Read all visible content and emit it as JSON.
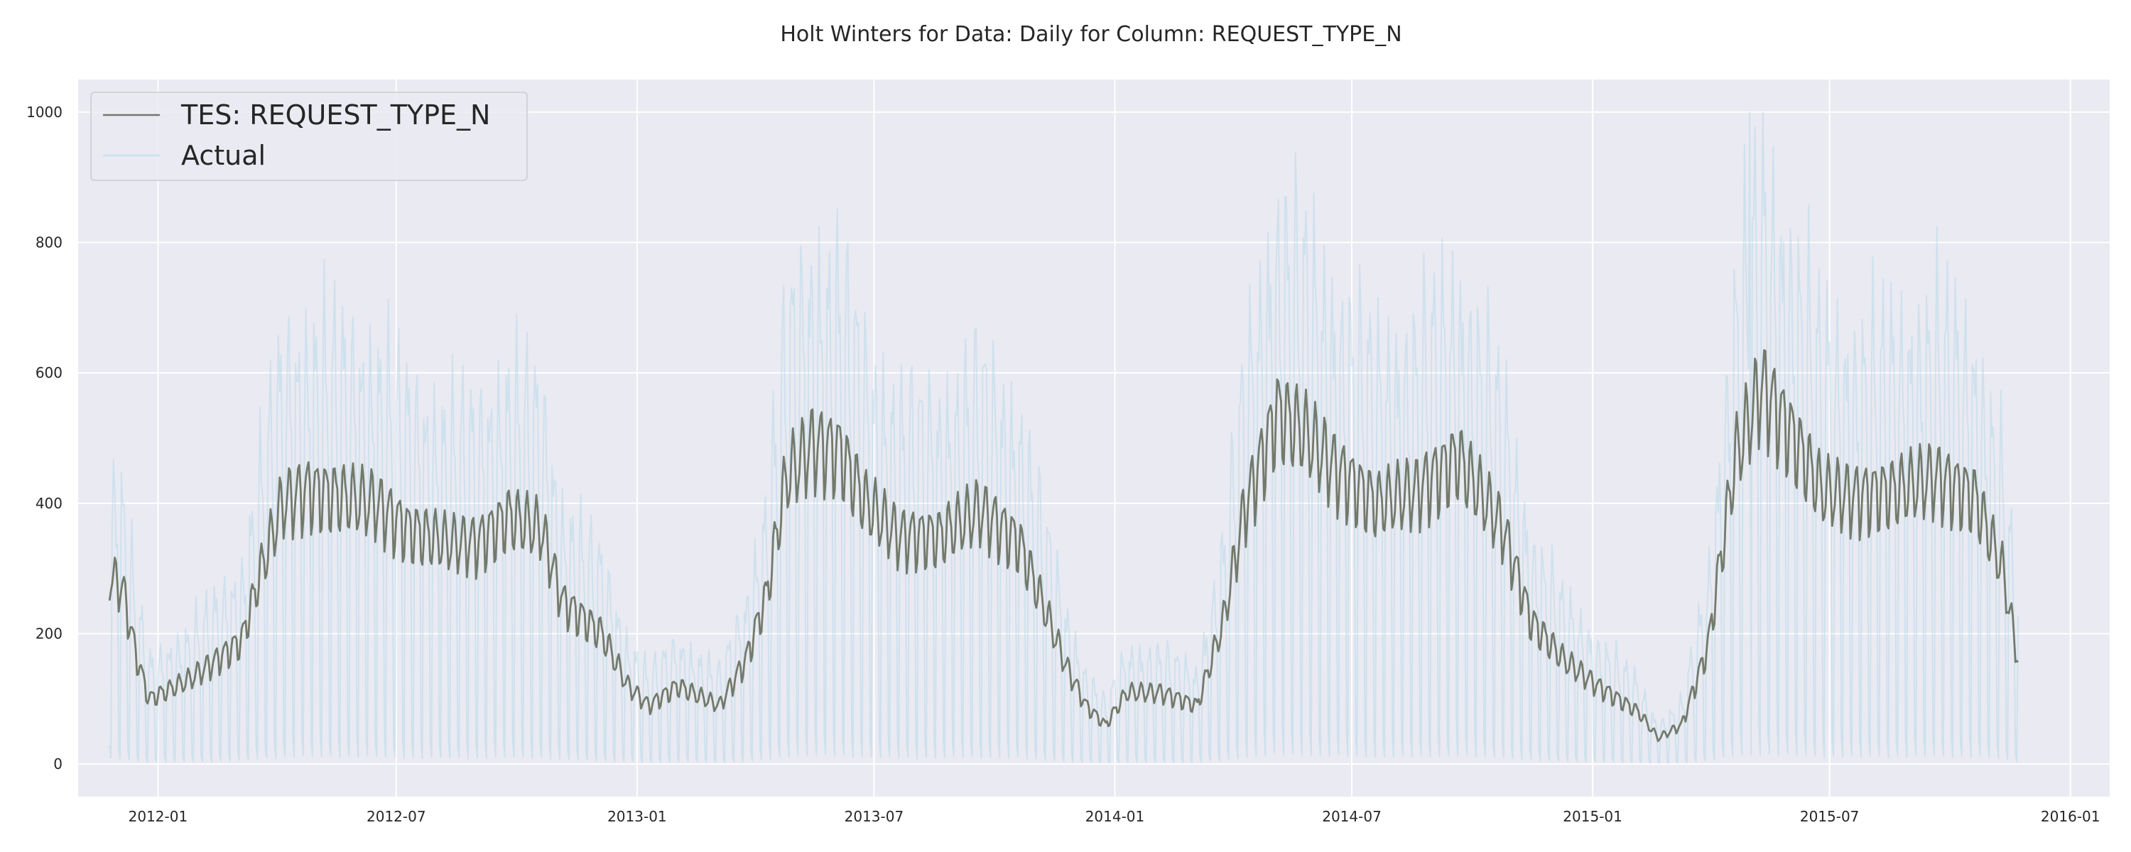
{
  "chart_data": {
    "type": "line",
    "title": "Holt Winters for Data: Daily for Column: REQUEST_TYPE_N",
    "xlabel": "",
    "ylabel": "",
    "x_range": [
      "2011-11-01",
      "2016-01-31"
    ],
    "ylim": [
      -50,
      1050
    ],
    "x_ticks": [
      "2012-01",
      "2012-07",
      "2013-01",
      "2013-07",
      "2014-01",
      "2014-07",
      "2015-01",
      "2015-07",
      "2016-01"
    ],
    "x_tick_dates": [
      "2012-01-01",
      "2012-07-01",
      "2013-01-01",
      "2013-07-01",
      "2014-01-01",
      "2014-07-01",
      "2015-01-01",
      "2015-07-01",
      "2016-01-01"
    ],
    "y_ticks": [
      0,
      200,
      400,
      600,
      800,
      1000
    ],
    "y_tick_labels": [
      "0",
      "200",
      "400",
      "600",
      "800",
      "1000"
    ],
    "grid": true,
    "legend_position": "top-left",
    "series": [
      {
        "name": "TES: REQUEST_TYPE_N",
        "color": "#737a6b",
        "weekly_amplitude": 0.12,
        "points": [
          [
            "2011-11-25",
            290
          ],
          [
            "2011-12-05",
            270
          ],
          [
            "2011-12-15",
            170
          ],
          [
            "2011-12-25",
            100
          ],
          [
            "2012-01-05",
            110
          ],
          [
            "2012-01-25",
            130
          ],
          [
            "2012-02-15",
            160
          ],
          [
            "2012-03-05",
            190
          ],
          [
            "2012-03-20",
            300
          ],
          [
            "2012-04-05",
            400
          ],
          [
            "2012-04-25",
            420
          ],
          [
            "2012-05-20",
            410
          ],
          [
            "2012-06-15",
            400
          ],
          [
            "2012-07-10",
            360
          ],
          [
            "2012-08-10",
            340
          ],
          [
            "2012-09-01",
            340
          ],
          [
            "2012-09-25",
            380
          ],
          [
            "2012-10-20",
            360
          ],
          [
            "2012-11-05",
            250
          ],
          [
            "2012-12-05",
            200
          ],
          [
            "2012-12-25",
            120
          ],
          [
            "2013-01-10",
            90
          ],
          [
            "2013-02-01",
            120
          ],
          [
            "2013-03-05",
            90
          ],
          [
            "2013-03-25",
            160
          ],
          [
            "2013-04-10",
            260
          ],
          [
            "2013-04-25",
            440
          ],
          [
            "2013-05-15",
            490
          ],
          [
            "2013-06-05",
            480
          ],
          [
            "2013-06-25",
            400
          ],
          [
            "2013-07-20",
            350
          ],
          [
            "2013-08-20",
            350
          ],
          [
            "2013-09-20",
            390
          ],
          [
            "2013-10-20",
            340
          ],
          [
            "2013-11-10",
            230
          ],
          [
            "2013-11-25",
            150
          ],
          [
            "2013-12-10",
            90
          ],
          [
            "2013-12-25",
            60
          ],
          [
            "2014-01-10",
            110
          ],
          [
            "2014-02-05",
            110
          ],
          [
            "2014-03-05",
            90
          ],
          [
            "2014-03-25",
            220
          ],
          [
            "2014-04-10",
            390
          ],
          [
            "2014-05-05",
            540
          ],
          [
            "2014-05-25",
            510
          ],
          [
            "2014-06-20",
            450
          ],
          [
            "2014-07-20",
            400
          ],
          [
            "2014-08-20",
            420
          ],
          [
            "2014-09-20",
            470
          ],
          [
            "2014-10-25",
            360
          ],
          [
            "2014-11-15",
            220
          ],
          [
            "2014-12-10",
            160
          ],
          [
            "2015-01-05",
            120
          ],
          [
            "2015-02-05",
            80
          ],
          [
            "2015-02-20",
            40
          ],
          [
            "2015-03-10",
            60
          ],
          [
            "2015-03-30",
            180
          ],
          [
            "2015-04-20",
            470
          ],
          [
            "2015-05-10",
            580
          ],
          [
            "2015-06-01",
            510
          ],
          [
            "2015-06-25",
            420
          ],
          [
            "2015-07-20",
            410
          ],
          [
            "2015-08-20",
            420
          ],
          [
            "2015-09-20",
            440
          ],
          [
            "2015-10-20",
            410
          ],
          [
            "2015-11-10",
            300
          ],
          [
            "2015-11-22",
            160
          ]
        ]
      },
      {
        "name": "Actual",
        "color": "#add8e6",
        "daily_range": [
          "2011-11-25",
          "2015-11-22"
        ],
        "peak_value": 1000,
        "peak_date": "2015-05-01"
      }
    ]
  }
}
